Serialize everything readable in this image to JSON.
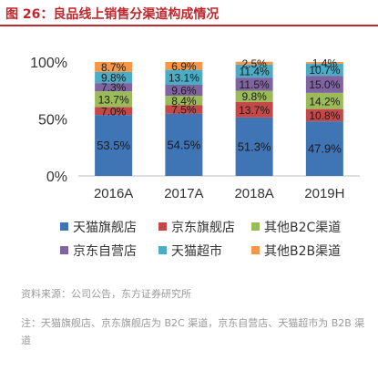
{
  "title": "图 26：良品线上销售分渠道构成情况",
  "source": "资料来源：公司公告，东方证券研究所",
  "note": "注：天猫旗舰店、京东旗舰店为 B2C 渠道，京东自营店、天猫超市为 B2B 渠道",
  "chart_data": {
    "type": "bar",
    "stacked": true,
    "categories": [
      "2016A",
      "2017A",
      "2018A",
      "2019H"
    ],
    "ylim": [
      0,
      100
    ],
    "yticks": [
      "0%",
      "50%",
      "100%"
    ],
    "grid": false,
    "legend_position": "bottom",
    "series": [
      {
        "name": "天猫旗舰店",
        "color": "#3f74b5",
        "values": [
          53.5,
          54.5,
          51.3,
          47.9
        ],
        "labels": [
          "53.5%",
          "54.5%",
          "51.3%",
          "47.9%"
        ]
      },
      {
        "name": "京东旗舰店",
        "color": "#c44848",
        "values": [
          7.0,
          7.5,
          13.7,
          10.8
        ],
        "labels": [
          "7.0%",
          "7.5%",
          "13.7%",
          "10.8%"
        ]
      },
      {
        "name": "其他B2C渠道",
        "color": "#9bbb59",
        "values": [
          13.7,
          8.4,
          9.8,
          14.2
        ],
        "labels": [
          "13.7%",
          "8.4%",
          "9.8%",
          "14.2%"
        ]
      },
      {
        "name": "京东自营店",
        "color": "#8064a2",
        "values": [
          7.3,
          9.6,
          11.5,
          15.0
        ],
        "labels": [
          "7.3%",
          "9.6%",
          "11.5%",
          "15.0%"
        ]
      },
      {
        "name": "天猫超市",
        "color": "#4bacc6",
        "values": [
          9.8,
          13.1,
          11.4,
          10.7
        ],
        "labels": [
          "9.8%",
          "13.1%",
          "11.4%",
          "10.7%"
        ]
      },
      {
        "name": "其他B2B渠道",
        "color": "#f79646",
        "values": [
          8.7,
          6.9,
          2.5,
          1.4
        ],
        "labels": [
          "8.7%",
          "6.9%",
          "2.5%",
          "1.4%"
        ]
      }
    ]
  }
}
